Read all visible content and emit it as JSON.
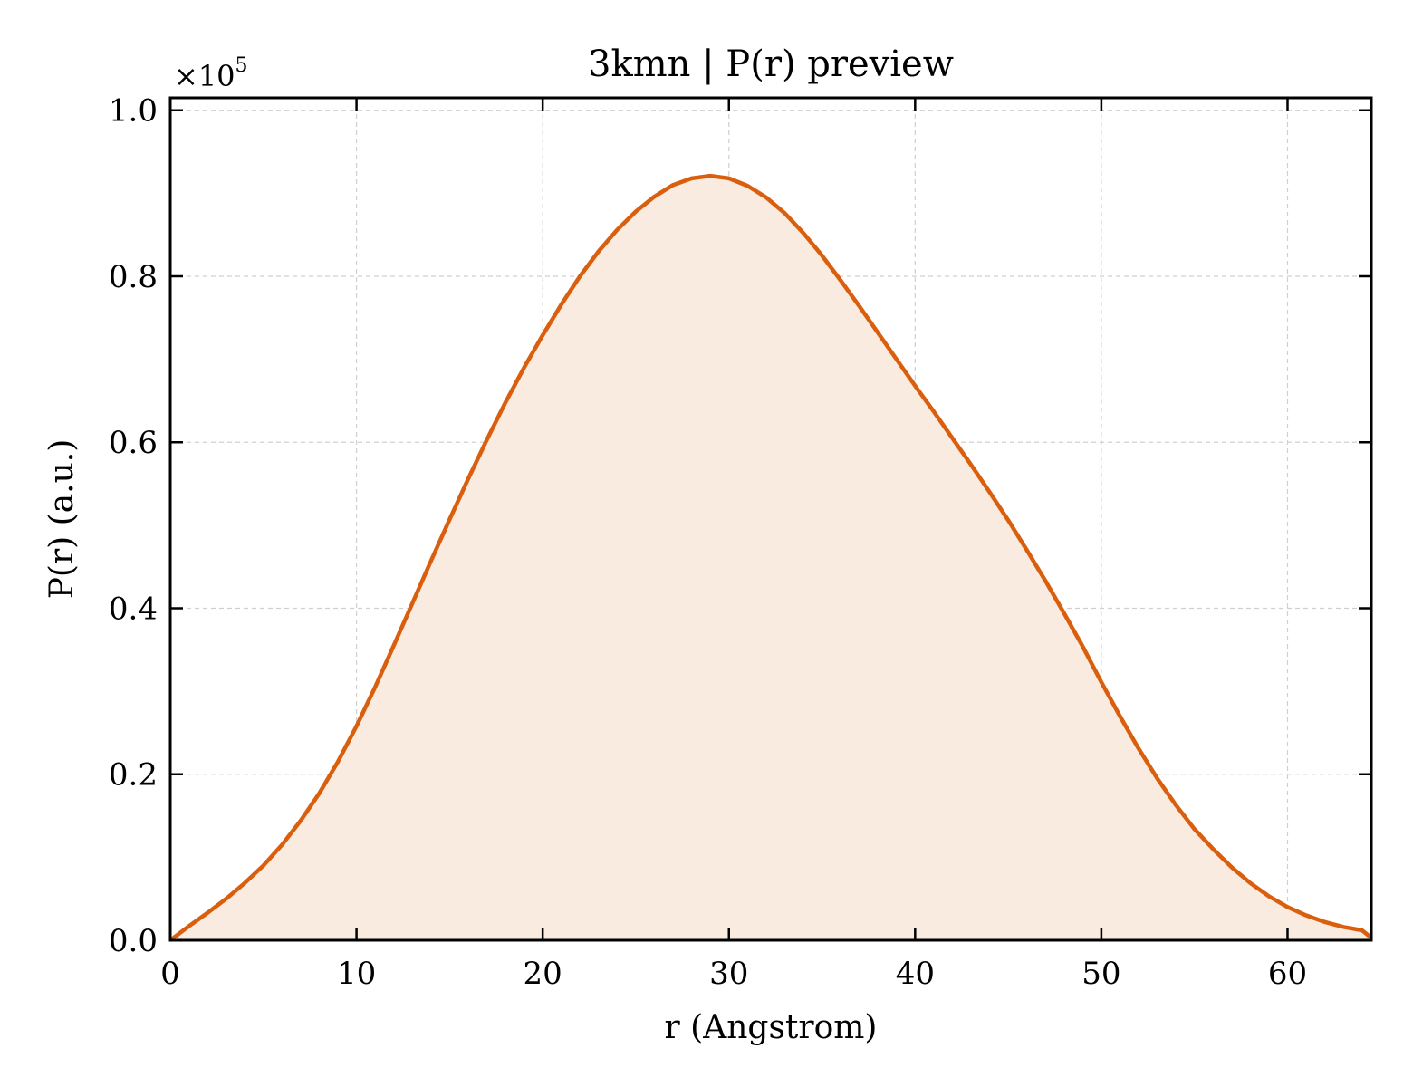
{
  "chart_data": {
    "type": "area",
    "title": "3kmn | P(r) preview",
    "xlabel": "r (Angstrom)",
    "ylabel": "P(r) (a.u.)",
    "y_multiplier_base": "×10",
    "y_multiplier_exp": "5",
    "xlim": [
      0,
      64.5
    ],
    "ylim": [
      0,
      1.015
    ],
    "grid": true,
    "legend": "none",
    "colors": {
      "line": "#d95f0e",
      "fill": "#f9ebe0",
      "grid": "#d0d0d0",
      "axes": "#000000"
    },
    "x_ticks": [
      {
        "value": 0,
        "label": "0"
      },
      {
        "value": 10,
        "label": "10"
      },
      {
        "value": 20,
        "label": "20"
      },
      {
        "value": 30,
        "label": "30"
      },
      {
        "value": 40,
        "label": "40"
      },
      {
        "value": 50,
        "label": "50"
      },
      {
        "value": 60,
        "label": "60"
      }
    ],
    "y_ticks": [
      {
        "value": 0.0,
        "label": "0.0"
      },
      {
        "value": 0.2,
        "label": "0.2"
      },
      {
        "value": 0.4,
        "label": "0.4"
      },
      {
        "value": 0.6,
        "label": "0.6"
      },
      {
        "value": 0.8,
        "label": "0.8"
      },
      {
        "value": 1.0,
        "label": "1.0"
      }
    ],
    "series": [
      {
        "x": [
          0,
          1,
          2,
          3,
          4,
          5,
          6,
          7,
          8,
          9,
          10,
          11,
          12,
          13,
          14,
          15,
          16,
          17,
          18,
          19,
          20,
          21,
          22,
          23,
          24,
          25,
          26,
          27,
          28,
          29,
          30,
          31,
          32,
          33,
          34,
          35,
          36,
          37,
          38,
          39,
          40,
          41,
          42,
          43,
          44,
          45,
          46,
          47,
          48,
          49,
          50,
          51,
          52,
          53,
          54,
          55,
          56,
          57,
          58,
          59,
          60,
          61,
          62,
          63,
          64,
          64.5
        ],
        "y": [
          0.0,
          0.017,
          0.033,
          0.05,
          0.069,
          0.09,
          0.115,
          0.144,
          0.177,
          0.215,
          0.258,
          0.305,
          0.355,
          0.406,
          0.457,
          0.507,
          0.556,
          0.603,
          0.648,
          0.69,
          0.729,
          0.766,
          0.8,
          0.83,
          0.856,
          0.878,
          0.896,
          0.91,
          0.918,
          0.921,
          0.918,
          0.909,
          0.895,
          0.876,
          0.852,
          0.825,
          0.795,
          0.764,
          0.732,
          0.7,
          0.668,
          0.637,
          0.605,
          0.573,
          0.54,
          0.506,
          0.47,
          0.433,
          0.394,
          0.354,
          0.311,
          0.27,
          0.231,
          0.195,
          0.163,
          0.134,
          0.11,
          0.088,
          0.069,
          0.053,
          0.04,
          0.03,
          0.022,
          0.016,
          0.012,
          0.003
        ]
      }
    ]
  }
}
